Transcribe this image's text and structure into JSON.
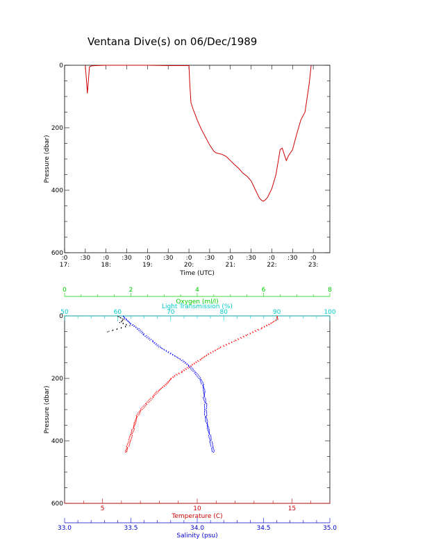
{
  "title": "Ventana Dive(s) on 06/Dec/1989",
  "chart_data": [
    {
      "type": "line",
      "xlabel": "Time (UTC)",
      "ylabel": "Pressure (dbar)",
      "x_ticks_minute": [
        ":0",
        ":30",
        ":0",
        ":30",
        ":0",
        ":30",
        ":0",
        ":30",
        ":0",
        ":30",
        ":0",
        ":30",
        ":0"
      ],
      "x_ticks_hour": [
        "17:",
        "18:",
        "19:",
        "20:",
        "21:",
        "22:",
        "23:"
      ],
      "xlim_hours": [
        17.0,
        23.4
      ],
      "y_ticks": [
        "0",
        "200",
        "400",
        "600"
      ],
      "ylim": [
        0,
        600
      ],
      "y_inverted": true,
      "color": "#cc0000",
      "series": [
        {
          "x_hours": [
            17.5,
            17.53,
            17.55,
            17.58,
            17.6,
            17.65,
            17.75,
            18.0,
            18.5,
            19.0,
            19.5,
            20.0,
            20.02,
            20.05,
            20.1,
            20.2,
            20.3,
            20.4,
            20.5,
            20.6,
            20.65,
            20.7,
            20.8,
            20.9,
            21.0,
            21.1,
            21.2,
            21.3,
            21.4,
            21.5,
            21.6,
            21.7,
            21.75,
            21.8,
            21.85,
            21.9,
            22.0,
            22.1,
            22.2,
            22.25,
            22.3,
            22.35,
            22.4,
            22.5,
            22.6,
            22.7,
            22.8,
            22.9,
            22.95
          ],
          "pressure": [
            0,
            50,
            90,
            40,
            5,
            2,
            1,
            0,
            0,
            0,
            1,
            1,
            60,
            120,
            140,
            175,
            205,
            230,
            255,
            275,
            280,
            282,
            285,
            292,
            305,
            318,
            330,
            345,
            355,
            370,
            398,
            425,
            432,
            435,
            430,
            422,
            395,
            350,
            270,
            265,
            285,
            305,
            290,
            270,
            220,
            175,
            150,
            60,
            0
          ]
        }
      ]
    },
    {
      "type": "scatter",
      "ylabel": "Pressure (dbar)",
      "y_ticks": [
        "0",
        "200",
        "400",
        "600"
      ],
      "ylim": [
        0,
        600
      ],
      "y_inverted": true,
      "axes": {
        "oxygen": {
          "label": "Oxygen (ml/l)",
          "ticks": [
            "0",
            "2",
            "4",
            "6",
            "8"
          ],
          "range": [
            0,
            8
          ],
          "color": "#00cc00"
        },
        "light_transmission": {
          "label": "Light Transmission (%)",
          "ticks": [
            "50",
            "60",
            "70",
            "80",
            "90",
            "100"
          ],
          "range": [
            50,
            100
          ],
          "color": "#00cccc"
        },
        "temperature": {
          "label": "Temperature (C)",
          "ticks": [
            "5",
            "10",
            "15"
          ],
          "range": [
            3,
            17
          ],
          "color": "#cc0000"
        },
        "salinity": {
          "label": "Salinity (psu)",
          "ticks": [
            "33.0",
            "33.5",
            "34.0",
            "34.5",
            "35.0"
          ],
          "range": [
            33,
            35
          ],
          "color": "#0000cc"
        }
      },
      "series": [
        {
          "axis": "temperature",
          "color": "#ff0000",
          "pressure": [
            0,
            10,
            25,
            40,
            60,
            80,
            100,
            120,
            140,
            160,
            180,
            190,
            200,
            220,
            240,
            260,
            280,
            300,
            320,
            340,
            360,
            380,
            400,
            420,
            435
          ],
          "values": [
            14.2,
            14.2,
            13.8,
            13.3,
            12.6,
            11.9,
            11.2,
            10.6,
            10.1,
            9.6,
            9.1,
            8.8,
            8.6,
            8.3,
            7.9,
            7.6,
            7.3,
            7.0,
            6.8,
            6.7,
            6.6,
            6.5,
            6.4,
            6.3,
            6.2
          ]
        },
        {
          "axis": "salinity",
          "color": "#0000ff",
          "pressure": [
            0,
            10,
            25,
            40,
            60,
            80,
            100,
            120,
            140,
            160,
            180,
            200,
            220,
            240,
            260,
            280,
            300,
            320,
            340,
            360,
            380,
            400,
            420,
            435
          ],
          "values": [
            33.44,
            33.46,
            33.5,
            33.55,
            33.6,
            33.66,
            33.72,
            33.8,
            33.88,
            33.94,
            33.98,
            34.02,
            34.04,
            34.05,
            34.05,
            34.06,
            34.06,
            34.06,
            34.07,
            34.08,
            34.09,
            34.1,
            34.11,
            34.12
          ]
        },
        {
          "axis": "light_transmission",
          "color": "#000000",
          "pressure": [
            0,
            10,
            20,
            30,
            50
          ],
          "values": [
            60,
            61,
            60.5,
            62,
            58
          ]
        }
      ]
    }
  ]
}
